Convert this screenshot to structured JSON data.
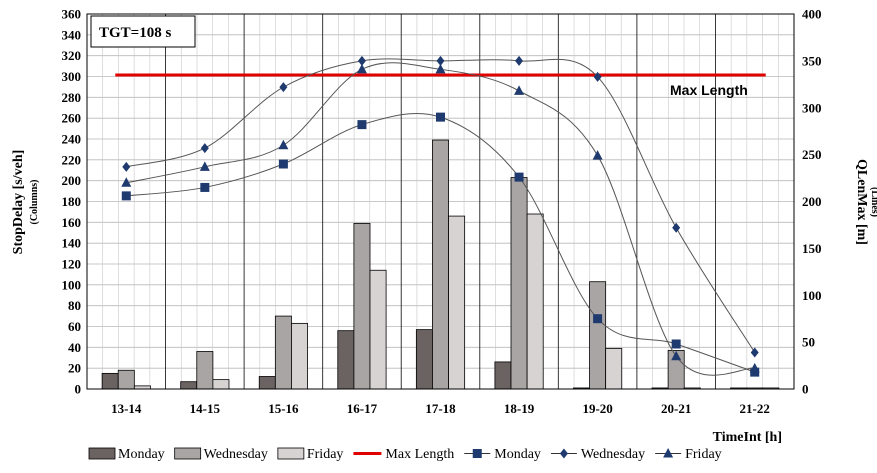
{
  "chart_data": {
    "type": "bar",
    "categories": [
      "13-14",
      "14-15",
      "15-16",
      "16-17",
      "17-18",
      "18-19",
      "19-20",
      "20-21",
      "21-22"
    ],
    "xlabel": "TimeInt [h]",
    "ylabel": "StopDelay [s/veh]",
    "ylabel_sub": "(Columns)",
    "y2label": "QLenMax [m]",
    "y2label_sub": "(Lines)",
    "ylim": [
      0,
      360
    ],
    "y2lim": [
      0,
      400
    ],
    "grid": true,
    "legend_position": "bottom",
    "annotation_box": "TGT=108 s",
    "reference_line": {
      "name": "Max Length",
      "value": 335,
      "axis": "right",
      "color": "#e00000"
    },
    "bar_series": [
      {
        "name": "Monday",
        "values": [
          15,
          7,
          12,
          56,
          57,
          26,
          1,
          1,
          1
        ],
        "color": "#6b6262"
      },
      {
        "name": "Wednesday",
        "values": [
          18,
          36,
          70,
          159,
          239,
          203,
          103,
          37,
          1
        ],
        "color": "#aaa5a5"
      },
      {
        "name": "Friday",
        "values": [
          3,
          9,
          63,
          114,
          166,
          168,
          39,
          1,
          1
        ],
        "color": "#d7d3d3"
      }
    ],
    "line_series": [
      {
        "name": "Monday",
        "marker": "square",
        "values": [
          206,
          215,
          240,
          282,
          290,
          226,
          75,
          48,
          18
        ],
        "color": "#1f3a6e"
      },
      {
        "name": "Wednesday",
        "marker": "diamond",
        "values": [
          237,
          257,
          322,
          350,
          350,
          350,
          333,
          172,
          39
        ],
        "color": "#1f3a6e"
      },
      {
        "name": "Friday",
        "marker": "triangle",
        "values": [
          220,
          237,
          260,
          341,
          341,
          318,
          249,
          35,
          22
        ],
        "color": "#1f3a6e"
      }
    ]
  }
}
